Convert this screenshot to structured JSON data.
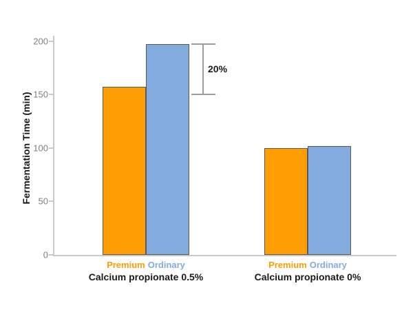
{
  "chart_data": {
    "type": "bar",
    "title": "",
    "ylabel": "Fermentation Time (min)",
    "xlabel": "",
    "ylim": [
      0,
      205
    ],
    "yticks": [
      0,
      50,
      100,
      150,
      200
    ],
    "grid": false,
    "legend_position": "below-each-group",
    "background_color": "#ffffff",
    "axis_color": "#c9c9c9",
    "tick_label_color": "#7f7f7f",
    "bar_border_color": "#595959",
    "series": [
      {
        "name": "Premium",
        "color": "#ff9d05"
      },
      {
        "name": "Ordinary",
        "color": "#84abde"
      }
    ],
    "groups": [
      {
        "label": "Calcium propionate 0.5%",
        "values": [
          157,
          197
        ]
      },
      {
        "label": "Calcium propionate 0%",
        "values": [
          100,
          102
        ]
      }
    ],
    "annotation": {
      "label": "20%",
      "top_value": 197,
      "bottom_value": 150,
      "line_color": "#9c9c9c",
      "text_color": "#1a1a1a"
    }
  }
}
